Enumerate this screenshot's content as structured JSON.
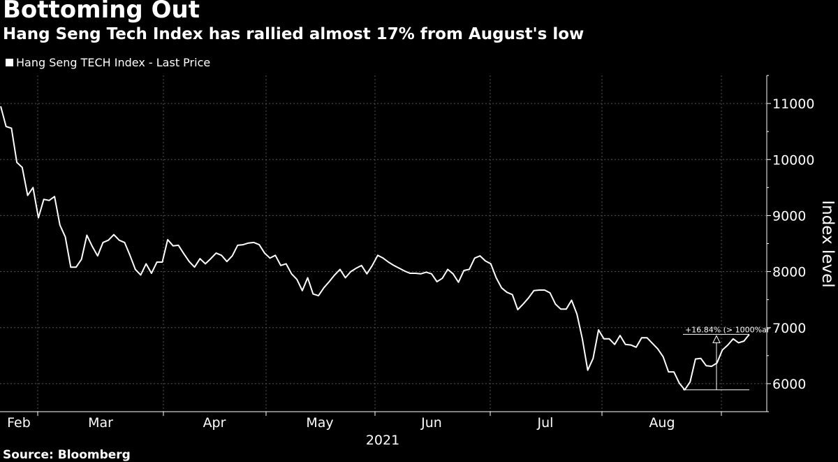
{
  "header": {
    "title": "Bottoming Out",
    "subtitle": "Hang Seng Tech Index has rallied almost 17% from August's low"
  },
  "footer": {
    "source": "Source: Bloomberg"
  },
  "colors": {
    "background": "#000000",
    "line": "#ffffff",
    "grid": "#555555"
  },
  "chart_data": {
    "type": "line",
    "title": "Bottoming Out",
    "subtitle": "Hang Seng Tech Index has rallied almost 17% from August's low",
    "ylabel": "Index level",
    "year_label": "2021",
    "ylim": [
      5500,
      11500
    ],
    "yticks": [
      6000,
      7000,
      8000,
      9000,
      10000,
      11000
    ],
    "y_axis_side": "right",
    "grid": true,
    "legend_position": "top-left",
    "months": [
      "Feb",
      "Mar",
      "Apr",
      "May",
      "Jun",
      "Jul",
      "Aug"
    ],
    "series": [
      {
        "name": "Hang Seng TECH Index - Last Price",
        "values": [
          10950,
          10590,
          10560,
          9950,
          9860,
          9360,
          9500,
          8960,
          9290,
          9270,
          9340,
          8830,
          8620,
          8080,
          8080,
          8220,
          8650,
          8450,
          8280,
          8520,
          8560,
          8660,
          8560,
          8520,
          8290,
          8040,
          7940,
          8140,
          7970,
          8170,
          8170,
          8570,
          8460,
          8470,
          8320,
          8180,
          8080,
          8230,
          8140,
          8230,
          8330,
          8290,
          8180,
          8280,
          8470,
          8480,
          8510,
          8520,
          8480,
          8330,
          8240,
          8290,
          8110,
          8140,
          7960,
          7860,
          7660,
          7890,
          7600,
          7570,
          7710,
          7820,
          7940,
          8040,
          7890,
          8000,
          8060,
          8110,
          7960,
          8110,
          8290,
          8240,
          8170,
          8110,
          8060,
          8010,
          7970,
          7970,
          7960,
          7990,
          7960,
          7820,
          7880,
          8040,
          7960,
          7810,
          8020,
          8040,
          8240,
          8280,
          8190,
          8140,
          7890,
          7710,
          7630,
          7590,
          7320,
          7420,
          7530,
          7660,
          7670,
          7670,
          7620,
          7420,
          7330,
          7330,
          7490,
          7240,
          6800,
          6240,
          6450,
          6960,
          6800,
          6800,
          6700,
          6860,
          6700,
          6690,
          6650,
          6820,
          6820,
          6720,
          6620,
          6480,
          6210,
          6210,
          6010,
          5890,
          6030,
          6440,
          6450,
          6320,
          6310,
          6370,
          6600,
          6690,
          6800,
          6730,
          6760,
          6880
        ]
      }
    ],
    "annotations": [
      {
        "text": "+16.84% (> 1000%ar",
        "type": "change-bracket",
        "from_value": 5890,
        "to_value": 6880
      }
    ]
  }
}
